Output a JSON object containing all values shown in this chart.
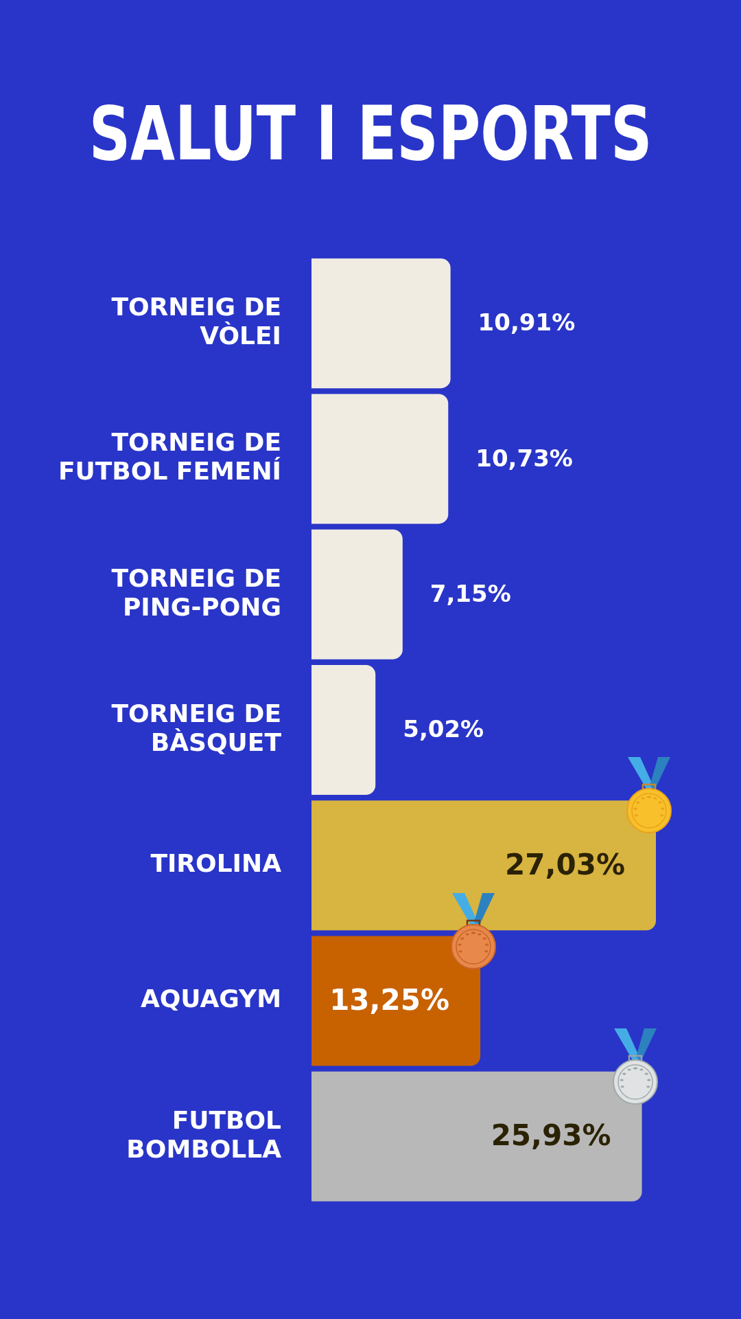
{
  "chart_data": {
    "type": "bar",
    "orientation": "horizontal",
    "title": "SALUT I ESPORTS",
    "categories": [
      "TORNEIG DE VÒLEI",
      "TORNEIG DE FUTBOL FEMENÍ",
      "TORNEIG DE PING-PONG",
      "TORNEIG DE BÀSQUET",
      "TIROLINA",
      "AQUAGYM",
      "FUTBOL BOMBOLLA"
    ],
    "values": [
      10.91,
      10.73,
      7.15,
      5.02,
      27.03,
      13.25,
      25.93
    ],
    "value_labels": [
      "10,91%",
      "10,73%",
      "7,15%",
      "5,02%",
      "27,03%",
      "13,25%",
      "25,93%"
    ],
    "colors": [
      "#f0ece2",
      "#f0ece2",
      "#f0ece2",
      "#f0ece2",
      "#d8b441",
      "#c86100",
      "#b8b8b8"
    ]
  }
}
